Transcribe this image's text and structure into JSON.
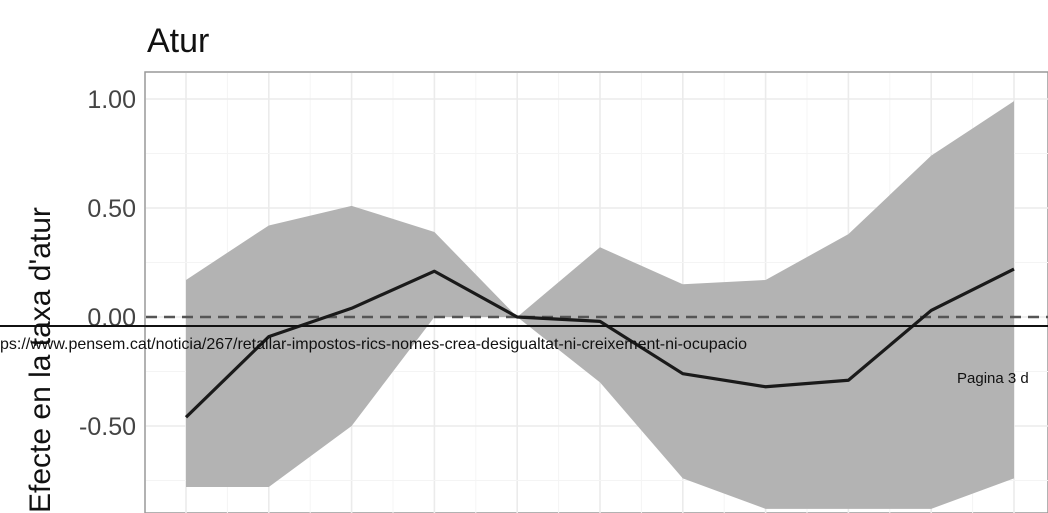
{
  "chart_data": {
    "type": "line",
    "title": "Atur",
    "ylabel": "Efecte en la taxa d'atur",
    "xlabel": "",
    "ylim": [
      -0.88,
      1.1
    ],
    "y_ticks": [
      1.0,
      0.5,
      0.0,
      -0.5
    ],
    "y_tick_labels": [
      "1.00",
      "0.50",
      "0.00",
      "-0.50"
    ],
    "grid": true,
    "reference_line": {
      "y": 0,
      "style": "dashed"
    },
    "x": [
      1,
      2,
      3,
      4,
      5,
      6,
      7,
      8,
      9,
      10,
      11
    ],
    "series": [
      {
        "values": [
          -0.46,
          -0.09,
          0.04,
          0.21,
          0.0,
          -0.02,
          -0.26,
          -0.32,
          -0.29,
          0.03,
          0.22
        ],
        "lower": [
          -0.78,
          -0.78,
          -0.5,
          0.0,
          0.0,
          -0.3,
          -0.74,
          -0.88,
          -0.88,
          -0.88,
          -0.74
        ],
        "upper": [
          0.17,
          0.42,
          0.51,
          0.39,
          0.0,
          0.32,
          0.15,
          0.17,
          0.38,
          0.74,
          0.99
        ],
        "line_color": "#1a1a1a",
        "band_color": "#b3b3b3"
      }
    ]
  },
  "overlay": {
    "url": "ps://www.pensem.cat/noticia/267/retallar-impostos-rics-nomes-crea-desigualtat-ni-creixement-ni-ocupacio",
    "page": "Pagina 3 d"
  }
}
